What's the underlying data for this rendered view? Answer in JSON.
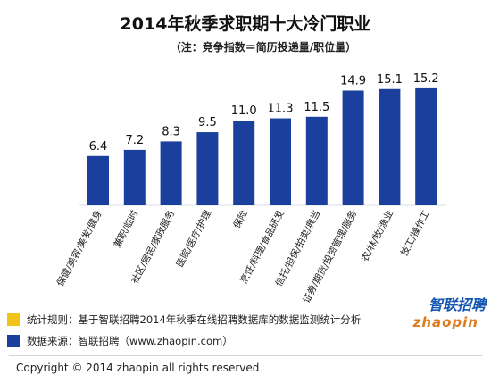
{
  "chart_data": {
    "type": "bar",
    "title": "2014年秋季求职期十大冷门职业",
    "subtitle": "（注：竞争指数＝简历投递量/职位量）",
    "categories": [
      "保健/美容/美发/健身",
      "兼职/临时",
      "社区/居民/家政服务",
      "医院/医疗/护理",
      "保险",
      "烹饪/料理/食品研发",
      "信托/担保/拍卖/典当",
      "证券/期货/投资管理/服务",
      "农/林/牧/渔业",
      "技工/操作工"
    ],
    "values": [
      6.4,
      7.2,
      8.3,
      9.5,
      11.0,
      11.3,
      11.5,
      14.9,
      15.1,
      15.2
    ],
    "value_labels": [
      "6.4",
      "7.2",
      "8.3",
      "9.5",
      "11.0",
      "11.3",
      "11.5",
      "14.9",
      "15.1",
      "15.2"
    ],
    "bar_color": "#1a3f9c",
    "ylim": [
      0,
      16
    ],
    "grid": false
  },
  "footer": {
    "rule_text": "统计规则：基于智联招聘2014年秋季在线招聘数据库的数据监测统计分析",
    "source_text": "数据来源：智联招聘（www.zhaopin.com）",
    "rule_color": "#f2c31a",
    "source_color": "#1a3f9c"
  },
  "brand": {
    "main": "智联招聘",
    "sub": "zhaopin"
  },
  "copyright": "Copyright  ©  2014 zhaopin all rights reserved"
}
